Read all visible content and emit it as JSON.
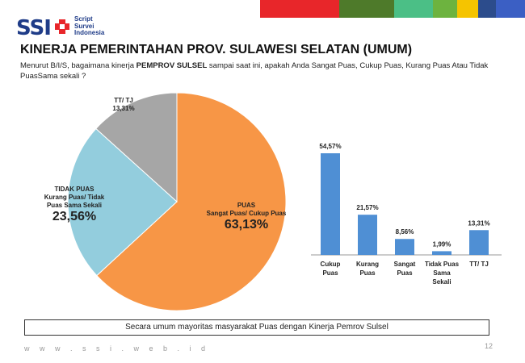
{
  "brand": {
    "logo_text": "SSI",
    "sub_lines": [
      "Script",
      "Survei",
      "Indonesia"
    ],
    "topbar_colors": [
      "#e8262a",
      "#4e7a2a",
      "#39a46b",
      "#4bbf86",
      "#6db33f",
      "#f5c400",
      "#2c4c8c",
      "#3b5fc4"
    ]
  },
  "header": {
    "title": "KINERJA PEMERINTAHAN PROV. SULAWESI SELATAN (UMUM)",
    "question_pre": "Menurut B/I/S, bagaimana kinerja ",
    "question_bold": "PEMPROV SULSEL",
    "question_post": " sampai saat ini, apakah Anda Sangat Puas, Cukup Puas, Kurang Puas Atau Tidak PuasSama sekali ?"
  },
  "chart_data": [
    {
      "type": "pie",
      "slices": [
        {
          "name": "PUAS",
          "sub": "Sangat Puas/ Cukup Puas",
          "value_label": "63,13%",
          "value": 63.13,
          "color": "#f79646"
        },
        {
          "name": "TIDAK PUAS",
          "sub": "Kurang Puas/ Tidak Puas Sama Sekali",
          "value_label": "23,56%",
          "value": 23.56,
          "color": "#93cddd"
        },
        {
          "name": "TT/ TJ",
          "sub": "",
          "value_label": "13,31%",
          "value": 13.31,
          "color": "#a6a6a6"
        }
      ]
    },
    {
      "type": "bar",
      "categories": [
        "Cukup Puas",
        "Kurang Puas",
        "Sangat Puas",
        "Tidak Puas Sama Sekali",
        "TT/ TJ"
      ],
      "category_lines": [
        [
          "Cukup",
          "Puas"
        ],
        [
          "Kurang",
          "Puas"
        ],
        [
          "Sangat",
          "Puas"
        ],
        [
          "Tidak Puas",
          "Sama",
          "Sekali"
        ],
        [
          "TT/ TJ"
        ]
      ],
      "values": [
        54.57,
        21.57,
        8.56,
        1.99,
        13.31
      ],
      "value_labels": [
        "54,57%",
        "21,57%",
        "8,56%",
        "1,99%",
        "13,31%"
      ],
      "bar_color": "#4f8fd4"
    }
  ],
  "footer": {
    "note": "Secara umum mayoritas masyarakat Puas dengan Kinerja Pemrov Sulsel",
    "url": "w w w . s s i . w e b . i d",
    "page": "12"
  }
}
